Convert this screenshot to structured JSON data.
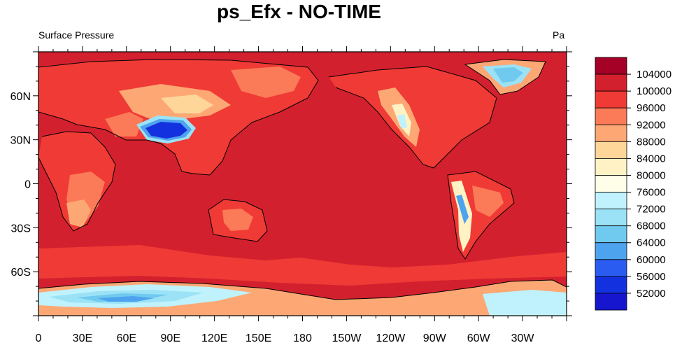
{
  "title": "ps_Efx - NO-TIME",
  "left_subtitle": "Surface Pressure",
  "right_subtitle": "Pa",
  "map": {
    "projection": "cylindrical equidistant",
    "center_longitude": 180,
    "lon_range": [
      0,
      360
    ],
    "lat_range": [
      -90,
      90
    ],
    "lat_ticks": [
      {
        "value": 60,
        "label": "60N"
      },
      {
        "value": 30,
        "label": "30N"
      },
      {
        "value": 0,
        "label": "0"
      },
      {
        "value": -30,
        "label": "30S"
      },
      {
        "value": -60,
        "label": "60S"
      }
    ],
    "lon_ticks": [
      {
        "value": 0,
        "label": "0"
      },
      {
        "value": 30,
        "label": "30E"
      },
      {
        "value": 60,
        "label": "60E"
      },
      {
        "value": 90,
        "label": "90E"
      },
      {
        "value": 120,
        "label": "120E"
      },
      {
        "value": 150,
        "label": "150E"
      },
      {
        "value": 180,
        "label": "180"
      },
      {
        "value": 210,
        "label": "150W"
      },
      {
        "value": 240,
        "label": "120W"
      },
      {
        "value": 270,
        "label": "90W"
      },
      {
        "value": 300,
        "label": "60W"
      },
      {
        "value": 330,
        "label": "30W"
      }
    ]
  },
  "colorbar": {
    "labels": [
      "104000",
      "100000",
      "96000",
      "92000",
      "88000",
      "84000",
      "80000",
      "76000",
      "72000",
      "68000",
      "64000",
      "60000",
      "56000",
      "52000"
    ],
    "colors": [
      "#a50026",
      "#d3202e",
      "#f03a35",
      "#fb7a57",
      "#fda874",
      "#fed69a",
      "#fff2c4",
      "#fffee8",
      "#bff2fc",
      "#9be2f6",
      "#70c9ee",
      "#4ea3ef",
      "#2b5cf2",
      "#1431e0",
      "#1616cf"
    ]
  }
}
